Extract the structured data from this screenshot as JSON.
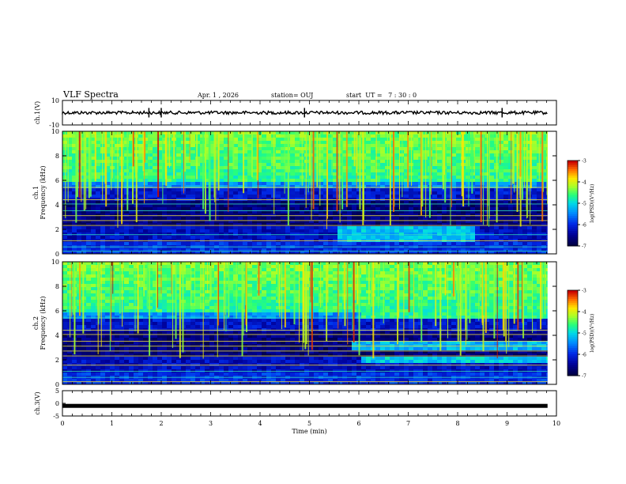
{
  "header": {
    "title": "VLF Spectra",
    "date": "Apr. 1  , 2026",
    "station": "station= OUJ",
    "start": "start  UT =   7 : 30 : 0"
  },
  "chart_data": {
    "type": "heatmap",
    "xlabel": "Time  (min)",
    "xlim": [
      0,
      10
    ],
    "xticks": [
      "0",
      "1",
      "2",
      "3",
      "4",
      "5",
      "6",
      "7",
      "8",
      "9",
      "10"
    ],
    "data_end_min": 9.82,
    "panels": [
      {
        "id": "ch1-waveform",
        "type": "line",
        "ylabel": "ch.1(V)",
        "ylim": [
          -10,
          10
        ],
        "yticks": [
          "10",
          "-10"
        ],
        "baseline": 0,
        "spikes_min": [
          1.75,
          2.0,
          4.9,
          8.9
        ]
      },
      {
        "id": "ch1-spectrogram",
        "type": "heatmap",
        "ylabel": "ch.1\nFrequency  (kHz)",
        "ylim": [
          0,
          10
        ],
        "yticks": [
          "0",
          "2",
          "4",
          "6",
          "8",
          "10"
        ]
      },
      {
        "id": "ch2-spectrogram",
        "type": "heatmap",
        "ylabel": "ch.2\nFrequency  (kHz)",
        "ylim": [
          0,
          10
        ],
        "yticks": [
          "0",
          "2",
          "4",
          "6",
          "8",
          "10"
        ]
      },
      {
        "id": "ch3-waveform",
        "type": "line",
        "ylabel": "ch.3(V)",
        "ylim": [
          -5,
          5
        ],
        "yticks": [
          "5",
          "0",
          "-5"
        ],
        "baseline": -1
      }
    ],
    "colorbar": {
      "label": "log(PSD)(V²/Hz)",
      "range": [
        -7,
        -3
      ],
      "ticks": [
        "-3",
        "-4",
        "-5",
        "-6",
        "-7"
      ]
    }
  }
}
